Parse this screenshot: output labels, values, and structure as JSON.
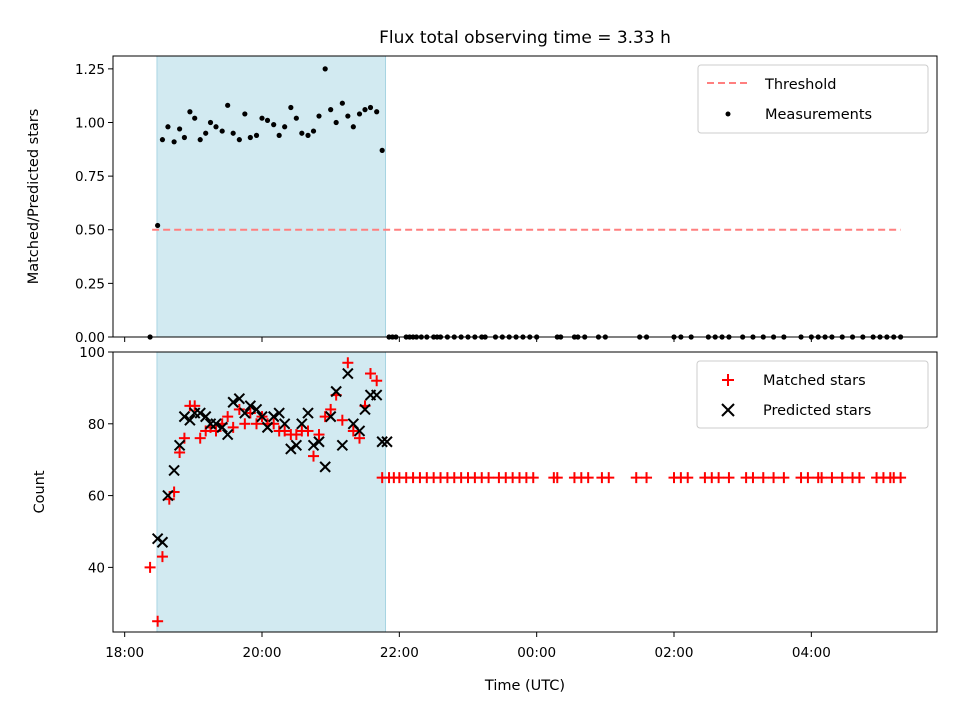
{
  "chart_data": [
    {
      "type": "scatter",
      "title": "Flux total observing time = 3.33 h",
      "ylabel": "Matched/Predicted stars",
      "xlabel": "",
      "ylim": [
        0,
        1.31
      ],
      "yticks": [
        0.0,
        0.25,
        0.5,
        0.75,
        1.0,
        1.25
      ],
      "ytick_labels": [
        "0.00",
        "0.25",
        "0.50",
        "0.75",
        "1.00",
        "1.25"
      ],
      "shaded_span_hours": [
        18.47,
        21.8
      ],
      "shade_color": "#add8e6",
      "threshold": {
        "name": "Threshold",
        "value": 0.5,
        "x_range": [
          18.4,
          29.3
        ],
        "color": "#ff7f7f"
      },
      "legend": [
        "Threshold",
        "Measurements"
      ],
      "series": [
        {
          "name": "Measurements",
          "color": "#000000",
          "x": [
            18.37,
            18.48,
            18.55,
            18.63,
            18.72,
            18.8,
            18.87,
            18.95,
            19.02,
            19.1,
            19.18,
            19.25,
            19.33,
            19.42,
            19.5,
            19.58,
            19.67,
            19.75,
            19.83,
            19.92,
            20.0,
            20.08,
            20.17,
            20.25,
            20.33,
            20.42,
            20.5,
            20.58,
            20.67,
            20.75,
            20.83,
            20.92,
            21.0,
            21.08,
            21.17,
            21.25,
            21.33,
            21.42,
            21.5,
            21.58,
            21.67,
            21.75,
            21.85,
            21.9,
            21.95,
            22.1,
            22.15,
            22.2,
            22.25,
            22.32,
            22.4,
            22.5,
            22.55,
            22.6,
            22.7,
            22.8,
            22.9,
            23.0,
            23.1,
            23.2,
            23.25,
            23.4,
            23.5,
            23.6,
            23.7,
            23.8,
            23.9,
            24.0,
            24.3,
            24.35,
            24.55,
            24.6,
            24.7,
            24.9,
            25.0,
            25.5,
            25.6,
            26.0,
            26.1,
            26.25,
            26.5,
            26.6,
            26.7,
            26.8,
            27.0,
            27.15,
            27.3,
            27.45,
            27.6,
            27.85,
            28.0,
            28.1,
            28.2,
            28.3,
            28.45,
            28.6,
            28.75,
            28.9,
            29.0,
            29.1,
            29.2,
            29.3
          ],
          "y": [
            0.0,
            0.52,
            0.92,
            0.98,
            0.91,
            0.97,
            0.93,
            1.05,
            1.02,
            0.92,
            0.95,
            1.0,
            0.98,
            0.96,
            1.08,
            0.95,
            0.92,
            1.04,
            0.93,
            0.94,
            1.02,
            1.01,
            0.99,
            0.94,
            0.98,
            1.07,
            1.02,
            0.95,
            0.94,
            0.96,
            1.03,
            1.25,
            1.06,
            1.0,
            1.09,
            1.03,
            0.98,
            1.04,
            1.06,
            1.07,
            1.05,
            0.87,
            0.0,
            0.0,
            0.0,
            0.0,
            0.0,
            0.0,
            0.0,
            0.0,
            0.0,
            0.0,
            0.0,
            0.0,
            0.0,
            0.0,
            0.0,
            0.0,
            0.0,
            0.0,
            0.0,
            0.0,
            0.0,
            0.0,
            0.0,
            0.0,
            0.0,
            0.0,
            0.0,
            0.0,
            0.0,
            0.0,
            0.0,
            0.0,
            0.0,
            0.0,
            0.0,
            0.0,
            0.0,
            0.0,
            0.0,
            0.0,
            0.0,
            0.0,
            0.0,
            0.0,
            0.0,
            0.0,
            0.0,
            0.0,
            0.0,
            0.0,
            0.0,
            0.0,
            0.0,
            0.0,
            0.0,
            0.0,
            0.0,
            0.0,
            0.0,
            0.0
          ]
        }
      ]
    },
    {
      "type": "scatter",
      "title": "",
      "ylabel": "Count",
      "xlabel": "Time (UTC)",
      "xlim": [
        17.83,
        29.83
      ],
      "ylim": [
        22,
        100
      ],
      "yticks": [
        40,
        60,
        80,
        100
      ],
      "ytick_labels": [
        "40",
        "60",
        "80",
        "100"
      ],
      "xticks": [
        18,
        20,
        22,
        24,
        26,
        28
      ],
      "xtick_labels": [
        "18:00",
        "20:00",
        "22:00",
        "00:00",
        "02:00",
        "04:00"
      ],
      "shaded_span_hours": [
        18.47,
        21.8
      ],
      "shade_color": "#add8e6",
      "legend": [
        "Matched stars",
        "Predicted stars"
      ],
      "series": [
        {
          "name": "Matched stars",
          "marker": "plus",
          "color": "#ff0000",
          "x": [
            18.37,
            18.48,
            18.55,
            18.65,
            18.72,
            18.8,
            18.87,
            18.95,
            19.02,
            19.1,
            19.18,
            19.25,
            19.33,
            19.42,
            19.5,
            19.58,
            19.67,
            19.75,
            19.83,
            19.92,
            20.0,
            20.08,
            20.17,
            20.25,
            20.33,
            20.42,
            20.5,
            20.58,
            20.67,
            20.75,
            20.83,
            20.92,
            21.0,
            21.08,
            21.17,
            21.25,
            21.33,
            21.42,
            21.5,
            21.58,
            21.67,
            21.75,
            21.85,
            21.92,
            22.0,
            22.1,
            22.2,
            22.3,
            22.4,
            22.5,
            22.6,
            22.7,
            22.8,
            22.9,
            23.0,
            23.1,
            23.2,
            23.3,
            23.45,
            23.55,
            23.65,
            23.75,
            23.85,
            23.95,
            24.25,
            24.3,
            24.55,
            24.65,
            24.75,
            24.95,
            25.05,
            25.45,
            25.6,
            26.0,
            26.1,
            26.2,
            26.45,
            26.55,
            26.65,
            26.8,
            27.05,
            27.15,
            27.3,
            27.45,
            27.6,
            27.85,
            27.95,
            28.1,
            28.15,
            28.3,
            28.45,
            28.6,
            28.7,
            28.95,
            29.05,
            29.15,
            29.2,
            29.3
          ],
          "y": [
            40,
            25,
            43,
            59,
            61,
            72,
            76,
            85,
            85,
            76,
            78,
            79,
            78,
            80,
            82,
            79,
            84,
            80,
            83,
            80,
            82,
            80,
            80,
            78,
            78,
            77,
            77,
            78,
            78,
            71,
            77,
            82,
            84,
            88,
            81,
            97,
            78,
            76,
            85,
            94,
            92,
            65,
            65,
            65,
            65,
            65,
            65,
            65,
            65,
            65,
            65,
            65,
            65,
            65,
            65,
            65,
            65,
            65,
            65,
            65,
            65,
            65,
            65,
            65,
            65,
            65,
            65,
            65,
            65,
            65,
            65,
            65,
            65,
            65,
            65,
            65,
            65,
            65,
            65,
            65,
            65,
            65,
            65,
            65,
            65,
            65,
            65,
            65,
            65,
            65,
            65,
            65,
            65,
            65,
            65,
            65,
            65,
            65
          ]
        },
        {
          "name": "Predicted stars",
          "marker": "x",
          "color": "#000000",
          "x": [
            18.48,
            18.55,
            18.63,
            18.72,
            18.8,
            18.87,
            18.95,
            19.02,
            19.1,
            19.18,
            19.25,
            19.33,
            19.42,
            19.5,
            19.58,
            19.67,
            19.75,
            19.83,
            19.92,
            20.0,
            20.08,
            20.17,
            20.25,
            20.33,
            20.42,
            20.5,
            20.58,
            20.67,
            20.75,
            20.83,
            20.92,
            21.0,
            21.08,
            21.17,
            21.25,
            21.33,
            21.42,
            21.5,
            21.58,
            21.67,
            21.75,
            21.82
          ],
          "y": [
            48,
            47,
            60,
            67,
            74,
            82,
            81,
            83,
            83,
            82,
            80,
            80,
            79,
            77,
            86,
            87,
            83,
            85,
            84,
            82,
            79,
            82,
            83,
            80,
            73,
            74,
            80,
            83,
            74,
            75,
            68,
            82,
            89,
            74,
            94,
            80,
            78,
            84,
            88,
            88,
            75,
            75
          ]
        }
      ]
    }
  ]
}
